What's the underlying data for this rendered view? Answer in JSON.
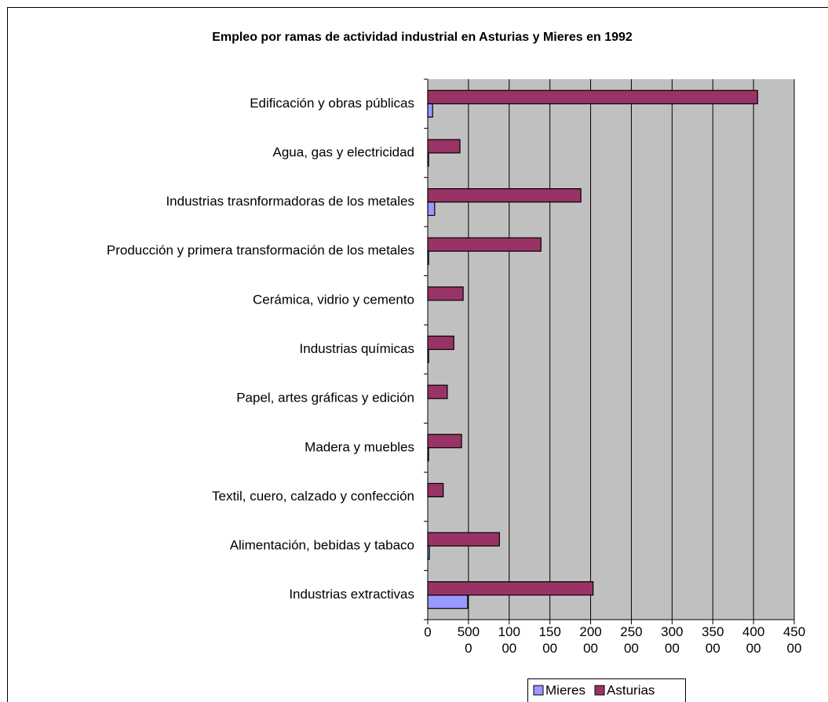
{
  "chart_data": {
    "type": "bar",
    "orientation": "horizontal",
    "title": "Empleo por ramas de actividad industrial en Asturias y Mieres en 1992",
    "categories": [
      "Edificación y obras públicas",
      "Agua, gas y electricidad",
      "Industrias trasnformadoras de los metales",
      "Producción y primera transformación de los metales",
      "Cerámica, vidrio y cemento",
      "Industrias químicas",
      "Papel, artes gráficas y edición",
      "Madera y muebles",
      "Textil, cuero, calzado y confección",
      "Alimentación, bebidas y tabaco",
      "Industrias extractivas"
    ],
    "series": [
      {
        "name": "Mieres",
        "color": "#9999ff",
        "values": [
          600,
          100,
          850,
          100,
          0,
          100,
          0,
          100,
          0,
          200,
          4900
        ]
      },
      {
        "name": "Asturias",
        "color": "#993366",
        "values": [
          40500,
          3950,
          18800,
          13900,
          4350,
          3200,
          2400,
          4150,
          1900,
          8800,
          20300
        ]
      }
    ],
    "xlim": [
      0,
      45000
    ],
    "xticks": [
      0,
      5000,
      10000,
      15000,
      20000,
      25000,
      30000,
      35000,
      40000,
      45000
    ],
    "grid": true,
    "legend": "bottom"
  }
}
